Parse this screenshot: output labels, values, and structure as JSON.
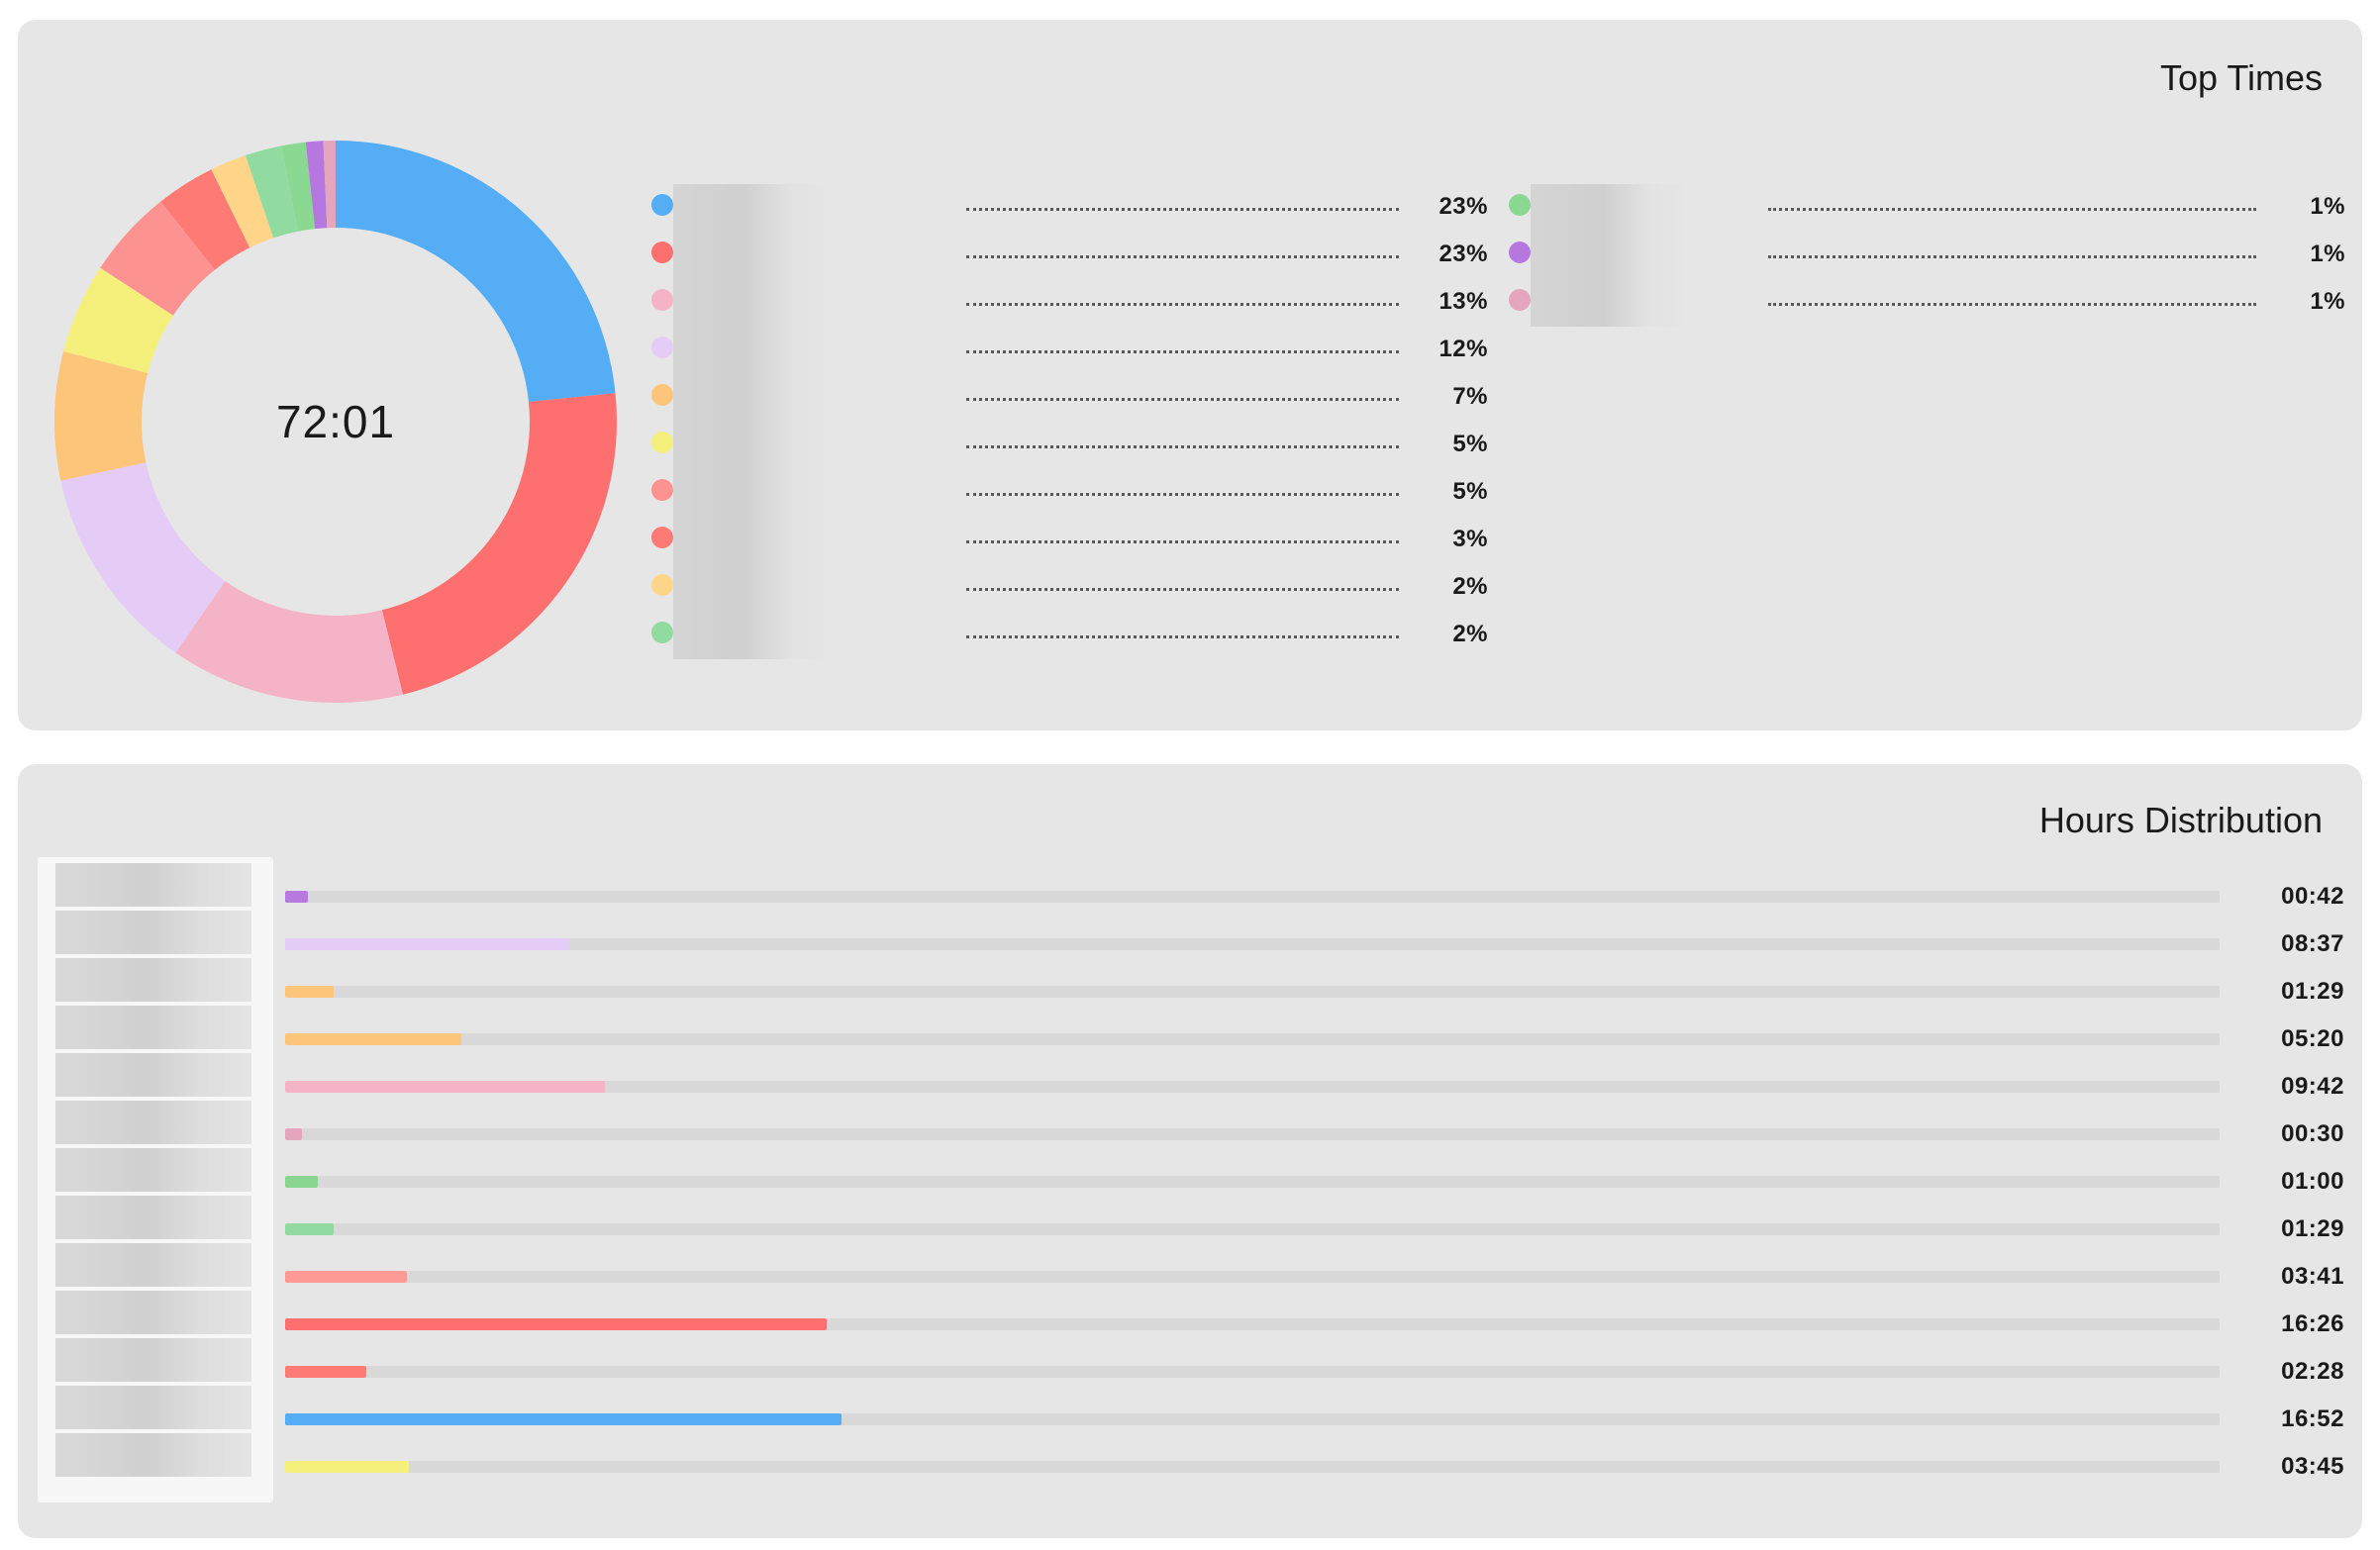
{
  "top_times": {
    "title": "Top Times",
    "total": "72:01",
    "segments": [
      {
        "percent_label": "23%",
        "value": 23.4,
        "color": "#54adf5"
      },
      {
        "percent_label": "23%",
        "value": 22.8,
        "color": "#fe7070"
      },
      {
        "percent_label": "13%",
        "value": 13.5,
        "color": "#f4b3c7"
      },
      {
        "percent_label": "12%",
        "value": 12.0,
        "color": "#e5ccf6"
      },
      {
        "percent_label": "7%",
        "value": 7.4,
        "color": "#fdc57a"
      },
      {
        "percent_label": "5%",
        "value": 5.2,
        "color": "#f4f07b"
      },
      {
        "percent_label": "5%",
        "value": 5.1,
        "color": "#fd9390"
      },
      {
        "percent_label": "3%",
        "value": 3.4,
        "color": "#fe7a74"
      },
      {
        "percent_label": "2%",
        "value": 2.1,
        "color": "#fed589"
      },
      {
        "percent_label": "2%",
        "value": 2.1,
        "color": "#91dba0"
      },
      {
        "percent_label": "1%",
        "value": 1.4,
        "color": "#8ad892"
      },
      {
        "percent_label": "1%",
        "value": 1.0,
        "color": "#b678e0"
      },
      {
        "percent_label": "1%",
        "value": 0.7,
        "color": "#e4a5bd"
      }
    ]
  },
  "hours_distribution": {
    "title": "Hours Distribution",
    "scale_max_minutes": 3520,
    "rows": [
      {
        "value": "00:42",
        "minutes": 42,
        "color": "#b87ae0"
      },
      {
        "value": "08:37",
        "minutes": 517,
        "color": "#e5ccf6"
      },
      {
        "value": "01:29",
        "minutes": 89,
        "color": "#fdc57a"
      },
      {
        "value": "05:20",
        "minutes": 320,
        "color": "#fdc57a"
      },
      {
        "value": "09:42",
        "minutes": 582,
        "color": "#f4b3c7"
      },
      {
        "value": "00:30",
        "minutes": 30,
        "color": "#e4a5bd"
      },
      {
        "value": "01:00",
        "minutes": 60,
        "color": "#88d68f"
      },
      {
        "value": "01:29",
        "minutes": 89,
        "color": "#91dba0"
      },
      {
        "value": "03:41",
        "minutes": 221,
        "color": "#fd9a96"
      },
      {
        "value": "16:26",
        "minutes": 986,
        "color": "#fe7070"
      },
      {
        "value": "02:28",
        "minutes": 148,
        "color": "#fe7a74"
      },
      {
        "value": "16:52",
        "minutes": 1012,
        "color": "#54adf5"
      },
      {
        "value": "03:45",
        "minutes": 225,
        "color": "#f4f07b"
      }
    ]
  }
}
